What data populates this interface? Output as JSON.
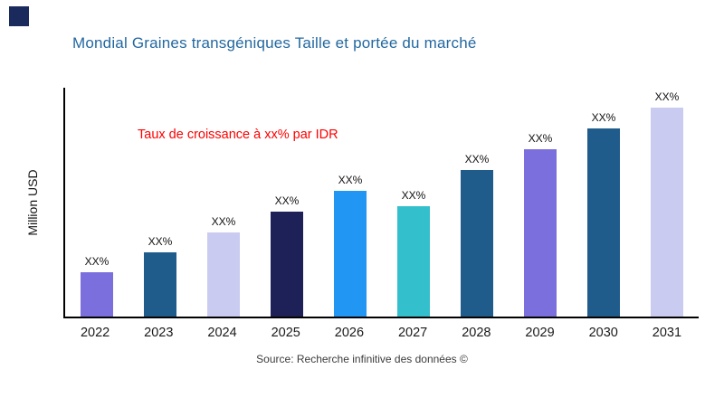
{
  "brand": {
    "logo_color": "#1b2a5c"
  },
  "page": {
    "title": "Mondial Graines transgéniques Taille et portée du marché",
    "title_color": "#2368a0",
    "annotation": "Taux de croissance à xx% par IDR",
    "annotation_color": "#ff0000",
    "ylabel": "Million USD",
    "source": "Source: Recherche infinitive des données ©"
  },
  "chart_data": {
    "type": "bar",
    "title": "Mondial Graines transgéniques Taille et portée du marché",
    "xlabel": "",
    "ylabel": "Million USD",
    "categories": [
      "2022",
      "2023",
      "2024",
      "2025",
      "2026",
      "2027",
      "2028",
      "2029",
      "2030",
      "2031"
    ],
    "values": [
      49,
      71,
      93,
      116,
      139,
      122,
      162,
      185,
      208,
      231
    ],
    "bar_labels": [
      "XX%",
      "XX%",
      "XX%",
      "XX%",
      "XX%",
      "XX%",
      "XX%",
      "XX%",
      "XX%",
      "XX%"
    ],
    "colors": [
      "#7b6fde",
      "#1f5c8b",
      "#c9ccf0",
      "#1e2158",
      "#2196f3",
      "#33bfcc",
      "#1f5c8b",
      "#7b6fde",
      "#1f5c8b",
      "#c9ccf0"
    ],
    "ylim": [
      0,
      255
    ],
    "units": "relative (no numeric axis ticks shown)",
    "grid": false,
    "legend": false,
    "annotation": "Taux de croissance à xx% par IDR"
  }
}
